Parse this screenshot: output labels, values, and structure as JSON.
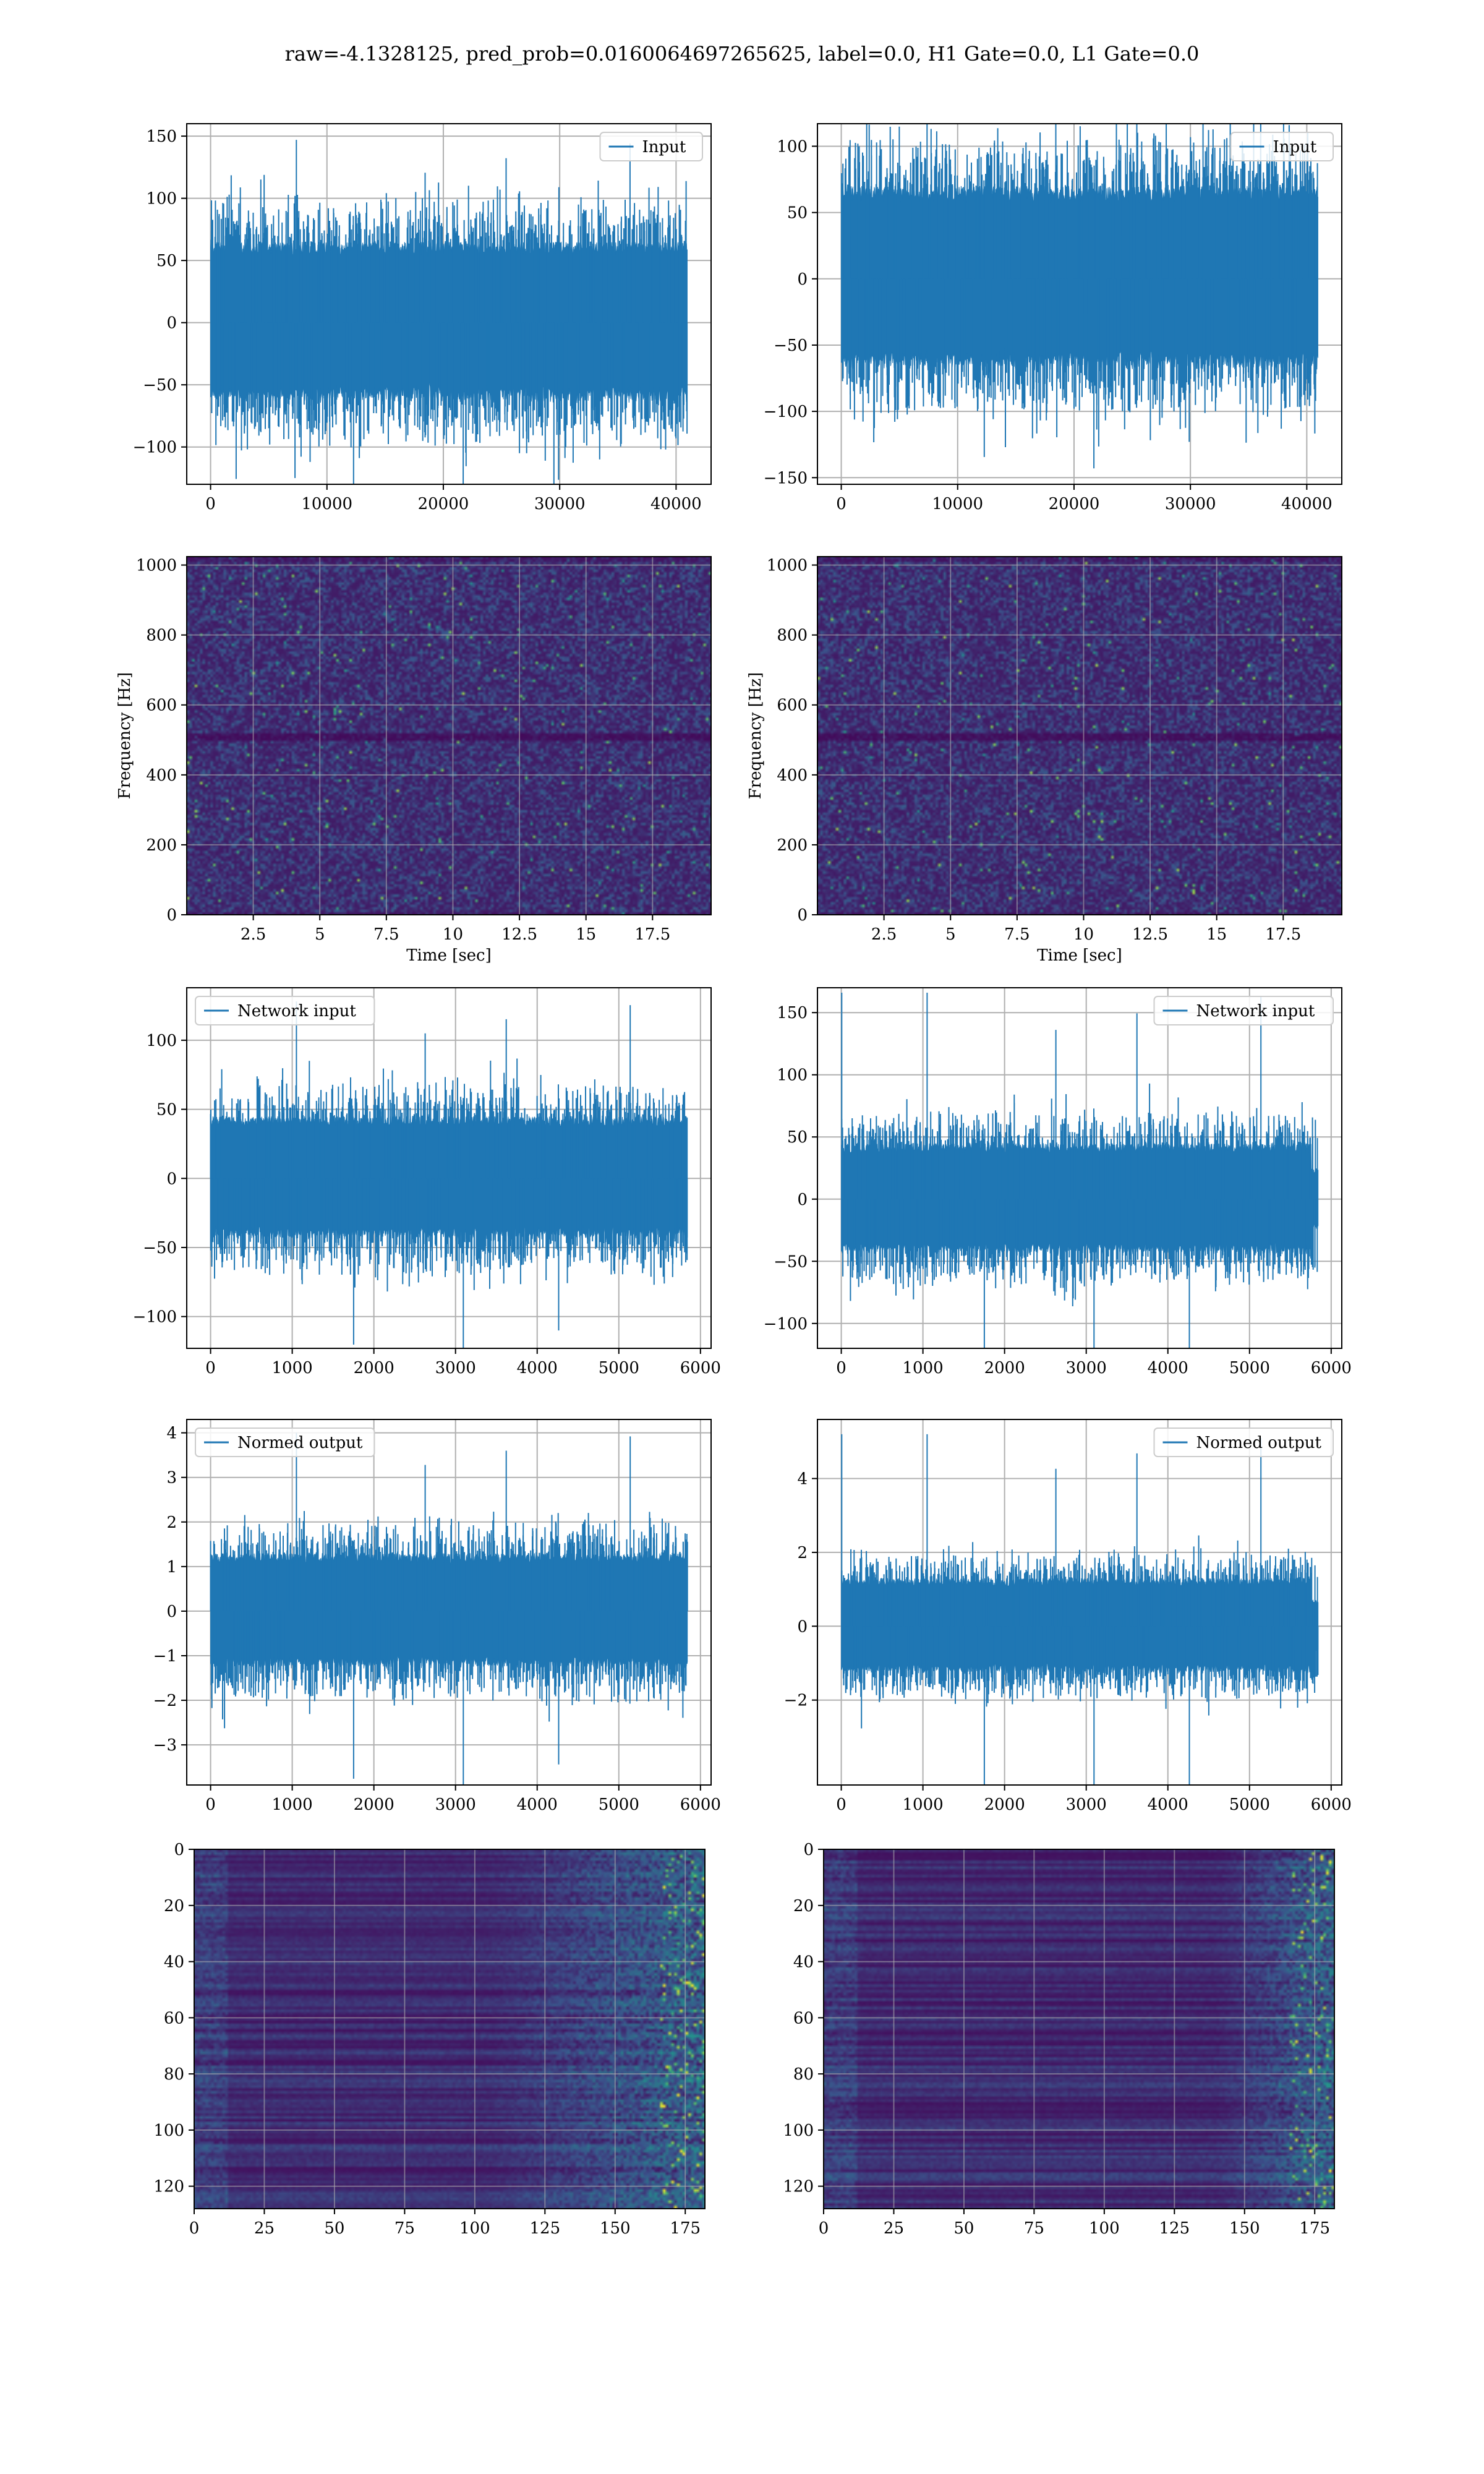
{
  "suptitle": "raw=-4.1328125, pred_prob=0.0160064697265625, label=0.0, H1 Gate=0.0, L1 Gate=0.0",
  "colors": {
    "line": "#1f77b4",
    "grid": "#b0b0b0",
    "viridis_low": "#440154",
    "viridis_mid": "#21918c",
    "viridis_high": "#fde725"
  },
  "chart_data": [
    {
      "id": "row1-left",
      "type": "line",
      "legend": "Input",
      "legend_loc": "upper right",
      "xlim": [
        -2048,
        43008
      ],
      "ylim": [
        -130,
        160
      ],
      "xticks": [
        0,
        10000,
        20000,
        30000,
        40000
      ],
      "yticks": [
        -100,
        -50,
        0,
        50,
        100,
        150
      ],
      "series": [
        {
          "name": "Input",
          "x_range": [
            0,
            40960
          ],
          "amplitude_core": 65,
          "amplitude_peak": 147,
          "offset": 0
        }
      ],
      "grid": true
    },
    {
      "id": "row1-right",
      "type": "line",
      "legend": "Input",
      "legend_loc": "upper right",
      "xlim": [
        -2048,
        43008
      ],
      "ylim": [
        -155,
        117
      ],
      "xticks": [
        0,
        10000,
        20000,
        30000,
        40000
      ],
      "yticks": [
        -150,
        -100,
        -50,
        0,
        50,
        100
      ],
      "series": [
        {
          "name": "Input",
          "x_range": [
            0,
            40960
          ],
          "amplitude_core": 70,
          "amplitude_peak": 143,
          "offset": 0
        }
      ],
      "grid": true
    },
    {
      "id": "row2-left",
      "type": "heatmap",
      "subtype": "spectrogram",
      "xlabel": "Time [sec]",
      "ylabel": "Frequency [Hz]",
      "xlim": [
        0,
        19.7
      ],
      "ylim": [
        0,
        1024
      ],
      "xticks": [
        2.5,
        5.0,
        7.5,
        10.0,
        12.5,
        15.0,
        17.5
      ],
      "yticks": [
        0,
        200,
        400,
        600,
        800,
        1000
      ],
      "grid": true
    },
    {
      "id": "row2-right",
      "type": "heatmap",
      "subtype": "spectrogram",
      "xlabel": "Time [sec]",
      "ylabel": "Frequency [Hz]",
      "xlim": [
        0,
        19.7
      ],
      "ylim": [
        0,
        1024
      ],
      "xticks": [
        2.5,
        5.0,
        7.5,
        10.0,
        12.5,
        15.0,
        17.5
      ],
      "yticks": [
        0,
        200,
        400,
        600,
        800,
        1000
      ],
      "grid": true
    },
    {
      "id": "row3-left",
      "type": "line",
      "legend": "Network input",
      "legend_loc": "upper left",
      "xlim": [
        -292,
        6130
      ],
      "ylim": [
        -123,
        138
      ],
      "xticks": [
        0,
        1000,
        2000,
        3000,
        4000,
        5000,
        6000
      ],
      "yticks": [
        -100,
        -50,
        0,
        50,
        100
      ],
      "series": [
        {
          "name": "Network input",
          "x_range": [
            0,
            5840
          ],
          "amplitude_core": 45,
          "amplitude_peak": 128,
          "offset": 0
        }
      ],
      "grid": true
    },
    {
      "id": "row3-right",
      "type": "line",
      "legend": "Network input",
      "legend_loc": "upper right",
      "xlim": [
        -292,
        6130
      ],
      "ylim": [
        -120,
        170
      ],
      "xticks": [
        0,
        1000,
        2000,
        3000,
        4000,
        5000,
        6000
      ],
      "yticks": [
        -100,
        -50,
        0,
        50,
        100,
        150
      ],
      "series": [
        {
          "name": "Network input",
          "x_range": [
            0,
            5840
          ],
          "amplitude_core": 45,
          "amplitude_peak": 166,
          "offset": 0
        }
      ],
      "grid": true
    },
    {
      "id": "row4-left",
      "type": "line",
      "legend": "Normed output",
      "legend_loc": "upper left",
      "xlim": [
        -292,
        6130
      ],
      "ylim": [
        -3.9,
        4.3
      ],
      "xticks": [
        0,
        1000,
        2000,
        3000,
        4000,
        5000,
        6000
      ],
      "yticks": [
        -3,
        -2,
        -1,
        0,
        1,
        2,
        3,
        4
      ],
      "series": [
        {
          "name": "Normed output",
          "x_range": [
            0,
            5840
          ],
          "amplitude_core": 1.3,
          "amplitude_peak": 4.0,
          "offset": 0
        }
      ],
      "grid": true
    },
    {
      "id": "row4-right",
      "type": "line",
      "legend": "Normed output",
      "legend_loc": "upper right",
      "xlim": [
        -292,
        6130
      ],
      "ylim": [
        -4.3,
        5.6
      ],
      "xticks": [
        0,
        1000,
        2000,
        3000,
        4000,
        5000,
        6000
      ],
      "yticks": [
        -2,
        0,
        2,
        4
      ],
      "series": [
        {
          "name": "Normed output",
          "x_range": [
            0,
            5840
          ],
          "amplitude_core": 1.3,
          "amplitude_peak": 5.2,
          "offset": 0
        }
      ],
      "grid": true
    },
    {
      "id": "row5-left",
      "type": "heatmap",
      "xlim": [
        0,
        182
      ],
      "ylim": [
        128,
        0
      ],
      "xticks": [
        0,
        25,
        50,
        75,
        100,
        125,
        150,
        175
      ],
      "yticks": [
        0,
        20,
        40,
        60,
        80,
        100,
        120
      ],
      "grid": true
    },
    {
      "id": "row5-right",
      "type": "heatmap",
      "xlim": [
        0,
        182
      ],
      "ylim": [
        128,
        0
      ],
      "xticks": [
        0,
        25,
        50,
        75,
        100,
        125,
        150,
        175
      ],
      "yticks": [
        0,
        20,
        40,
        60,
        80,
        100,
        120
      ],
      "grid": true
    }
  ]
}
